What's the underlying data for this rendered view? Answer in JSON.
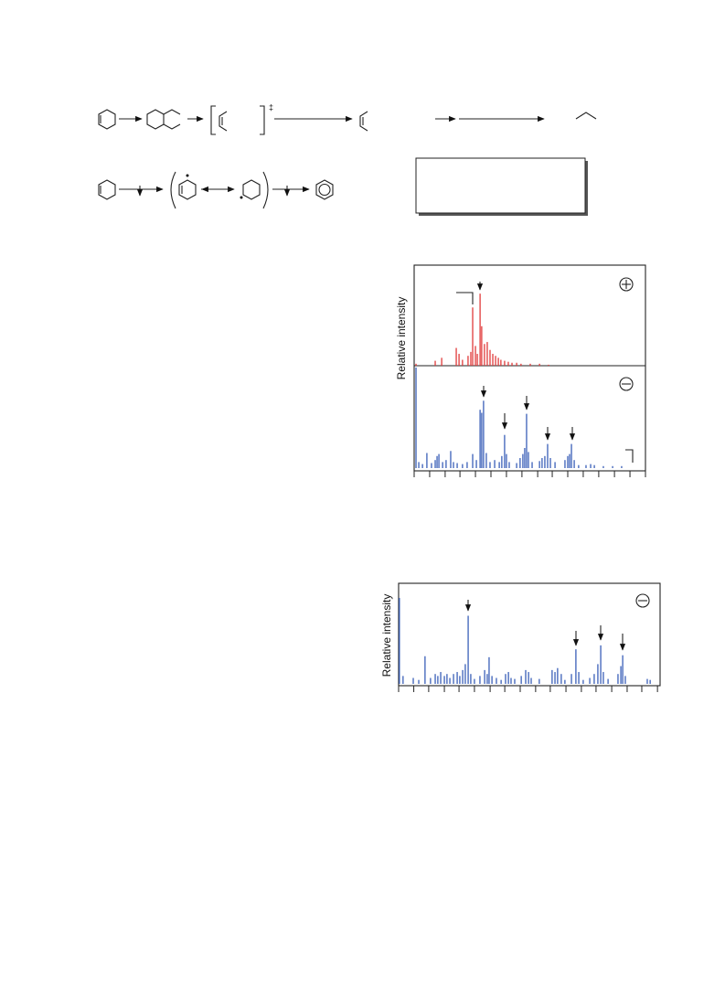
{
  "scheme": {
    "transition_state": "‡"
  },
  "chart_data": [
    {
      "type": "bar",
      "y_label": "Relative intensity",
      "color": "#e03a3a",
      "xlim": [
        0,
        100
      ],
      "ylim": [
        0,
        100
      ],
      "x": [
        0.8,
        9.1,
        11.9,
        18.2,
        19.4,
        20.9,
        23.3,
        24.5,
        25.3,
        26.5,
        27.3,
        28.5,
        29.2,
        30.4,
        31.6,
        32.8,
        34.0,
        35.2,
        36.4,
        37.5,
        39.1,
        40.7,
        42.3,
        44.3,
        46.2,
        50.2,
        54.2,
        58.1
      ],
      "values": [
        2,
        5,
        8,
        18,
        12,
        6,
        10,
        14,
        59,
        20,
        12,
        73,
        40,
        22,
        24,
        16,
        12,
        10,
        8,
        6,
        5,
        4,
        3,
        3,
        2,
        2,
        2,
        1
      ]
    },
    {
      "type": "bar",
      "color": "#3a5fb8",
      "xlim": [
        0,
        100
      ],
      "ylim": [
        0,
        100
      ],
      "x": [
        0.8,
        2.0,
        3.6,
        5.5,
        7.5,
        9.1,
        9.9,
        10.7,
        12.3,
        13.8,
        15.8,
        17.0,
        18.6,
        20.9,
        22.9,
        25.3,
        26.9,
        28.5,
        29.2,
        30.0,
        31.2,
        32.8,
        34.8,
        36.8,
        37.9,
        39.1,
        39.9,
        41.1,
        44.3,
        45.8,
        47.0,
        47.8,
        48.6,
        49.4,
        51.0,
        54.2,
        55.3,
        56.5,
        57.7,
        58.9,
        60.9,
        65.2,
        66.4,
        67.2,
        68.0,
        69.2,
        71.1,
        74.3,
        76.3,
        77.9,
        81.8,
        85.8,
        89.7
      ],
      "values": [
        100,
        6,
        4,
        15,
        5,
        8,
        12,
        14,
        6,
        8,
        17,
        6,
        5,
        4,
        6,
        14,
        8,
        58,
        55,
        67,
        15,
        6,
        8,
        6,
        12,
        33,
        14,
        6,
        5,
        10,
        14,
        20,
        54,
        16,
        6,
        7,
        10,
        12,
        24,
        10,
        6,
        8,
        12,
        14,
        24,
        8,
        3,
        3,
        4,
        3,
        2,
        2,
        2
      ],
      "xticks": [
        0,
        6.7,
        13.4,
        19.8,
        26.5,
        33.2,
        39.9,
        46.6,
        53.4,
        59.7,
        66.4,
        73.1,
        79.8,
        86.6,
        93.3,
        100
      ]
    },
    {
      "type": "bar",
      "y_label": "Relative intensity",
      "color": "#3a5fb8",
      "xlim": [
        0,
        100
      ],
      "ylim": [
        0,
        100
      ],
      "x": [
        0.3,
        1.7,
        5.6,
        7.7,
        10.1,
        12.2,
        14.0,
        15.0,
        16.1,
        17.5,
        18.5,
        19.6,
        21.0,
        22.4,
        23.4,
        24.5,
        25.5,
        26.6,
        27.6,
        29.0,
        31.1,
        32.9,
        33.9,
        34.6,
        35.7,
        37.4,
        39.2,
        40.9,
        42.0,
        43.0,
        44.4,
        46.9,
        48.6,
        49.7,
        50.7,
        53.8,
        58.7,
        59.8,
        60.8,
        62.2,
        63.6,
        66.1,
        67.8,
        68.9,
        70.6,
        73.1,
        74.8,
        76.2,
        77.3,
        78.3,
        80.1,
        83.9,
        85.0,
        85.7,
        86.7,
        95.1,
        96.2
      ],
      "values": [
        87,
        8,
        6,
        4,
        28,
        6,
        10,
        8,
        12,
        8,
        10,
        6,
        10,
        12,
        8,
        14,
        20,
        69,
        10,
        5,
        8,
        14,
        10,
        27,
        8,
        6,
        4,
        10,
        12,
        6,
        5,
        8,
        14,
        12,
        6,
        5,
        14,
        12,
        16,
        10,
        4,
        10,
        35,
        12,
        4,
        6,
        10,
        20,
        39,
        12,
        5,
        10,
        18,
        29,
        8,
        5,
        4
      ],
      "xticks": [
        0,
        5.8,
        11.5,
        17.5,
        23.1,
        29.0,
        35.0,
        40.6,
        46.5,
        52.4,
        58.0,
        64.0,
        69.9,
        75.5,
        81.5,
        87.4,
        93.0,
        99.0
      ]
    }
  ]
}
